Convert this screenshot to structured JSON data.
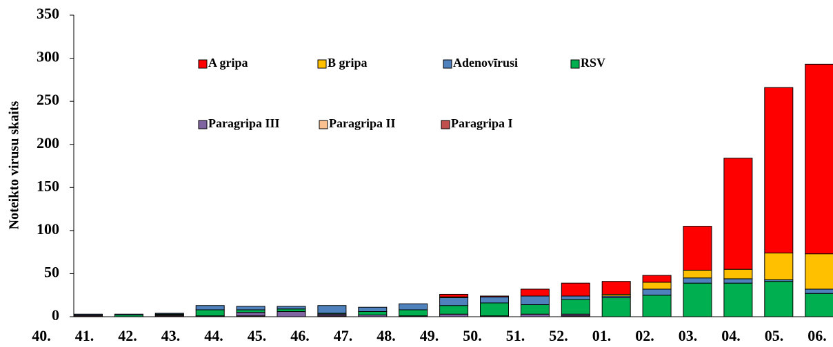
{
  "chart_data": {
    "type": "stacked_bar",
    "y_label": "Noteikto virusu skaits",
    "categories": [
      "40.",
      "41.",
      "42.",
      "43.",
      "44.",
      "45.",
      "46.",
      "47.",
      "48.",
      "49.",
      "50.",
      "51.",
      "52.",
      "01.",
      "02.",
      "03.",
      "04.",
      "05.",
      "06."
    ],
    "series": [
      {
        "name": "A gripa",
        "color": "#ff0000",
        "values": [
          0,
          0,
          0,
          0,
          0,
          0,
          0,
          0,
          0,
          3,
          1,
          8,
          15,
          15,
          8,
          51,
          129,
          192,
          220
        ]
      },
      {
        "name": "B gripa",
        "color": "#ffc000",
        "values": [
          0,
          0,
          0,
          0,
          0,
          0,
          0,
          0,
          0,
          1,
          0,
          0,
          0,
          2,
          8,
          9,
          11,
          31,
          41
        ]
      },
      {
        "name": "Adenovīrusi",
        "color": "#4f81bd",
        "values": [
          1,
          1,
          1,
          5,
          4,
          3,
          9,
          5,
          7,
          9,
          7,
          10,
          4,
          2,
          7,
          6,
          5,
          2,
          5
        ]
      },
      {
        "name": "RSV",
        "color": "#00b050",
        "values": [
          0,
          2,
          1,
          7,
          3,
          3,
          1,
          4,
          7,
          10,
          15,
          11,
          17,
          22,
          25,
          39,
          39,
          41,
          27
        ]
      },
      {
        "name": "Paragripa III",
        "color": "#8064a2",
        "values": [
          1,
          0,
          1,
          1,
          4,
          6,
          2,
          2,
          1,
          3,
          1,
          3,
          2,
          0,
          0,
          0,
          0,
          0,
          0
        ]
      },
      {
        "name": "Paragripa II",
        "color": "#fac090",
        "values": [
          0,
          0,
          0,
          0,
          0,
          0,
          0,
          0,
          0,
          0,
          0,
          0,
          0,
          0,
          0,
          0,
          0,
          0,
          0
        ]
      },
      {
        "name": "Paragripa I",
        "color": "#c0504d",
        "values": [
          1,
          0,
          1,
          0,
          1,
          0,
          1,
          0,
          0,
          0,
          0,
          0,
          1,
          0,
          0,
          0,
          0,
          0,
          0
        ]
      }
    ],
    "ylim": [
      0,
      350
    ],
    "yticks": [
      0,
      50,
      100,
      150,
      200,
      250,
      300,
      350
    ]
  }
}
